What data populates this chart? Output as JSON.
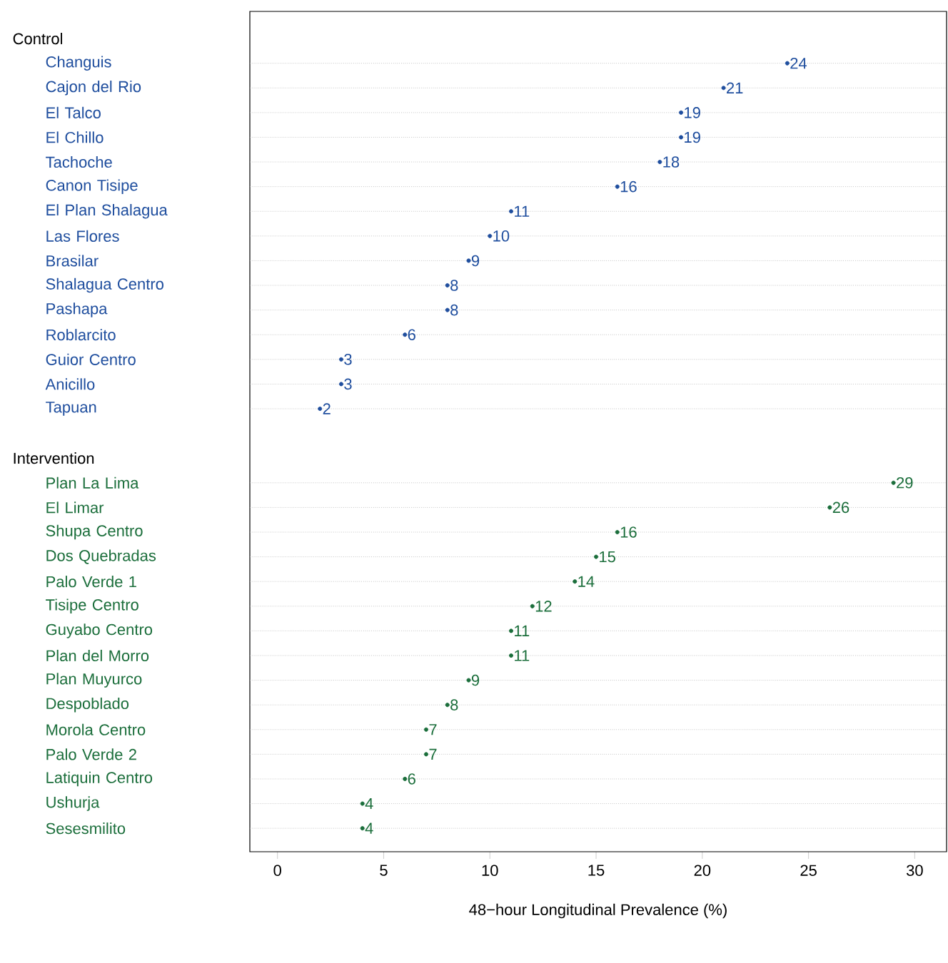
{
  "chart_data": {
    "type": "scatter",
    "xlabel": "48−hour Longitudinal Prevalence (%)",
    "categories": [
      null,
      "Changuis",
      "Cajon del Rio",
      "El Talco",
      "El Chillo",
      "Tachoche",
      "Canon Tisipe",
      "El Plan Shalagua",
      "Las Flores",
      "Brasilar",
      "Shalagua Centro",
      "Pashapa",
      "Roblarcito",
      "Guior Centro",
      "Anicillo",
      "Tapuan",
      null,
      null,
      "Plan La Lima",
      "El Limar",
      "Shupa Centro",
      "Dos Quebradas",
      "Palo Verde 1",
      "Tisipe Centro",
      "Guyabo Centro",
      "Plan del Morro",
      "Plan Muyurco",
      "Despoblado",
      "Morola Centro",
      "Palo Verde 2",
      "Latiquin Centro",
      "Ushurja",
      "Sesesmilito"
    ],
    "series": [
      {
        "color": "#1f4e9e",
        "values": [
          null,
          24,
          21,
          19,
          19,
          18,
          16,
          11,
          10,
          9,
          8,
          8,
          6,
          3,
          3,
          2,
          null,
          null,
          null,
          null,
          null,
          null,
          null,
          null,
          null,
          null,
          null,
          null,
          null,
          null,
          null,
          null,
          null
        ]
      },
      {
        "color": "#1b6e3b",
        "values": [
          null,
          null,
          null,
          null,
          null,
          null,
          null,
          null,
          null,
          null,
          null,
          null,
          null,
          null,
          null,
          null,
          null,
          null,
          29,
          26,
          16,
          15,
          14,
          12,
          11,
          11,
          9,
          8,
          7,
          7,
          6,
          4,
          4
        ]
      }
    ],
    "xlim": [
      -1.3,
      31.5
    ],
    "xticks": [
      0,
      5,
      10,
      15,
      20,
      25,
      30
    ],
    "annotations": [
      "Control",
      "Intervention"
    ],
    "grid": "y",
    "marker": "circle",
    "data_labels": true,
    "orientation": "horizontal"
  }
}
